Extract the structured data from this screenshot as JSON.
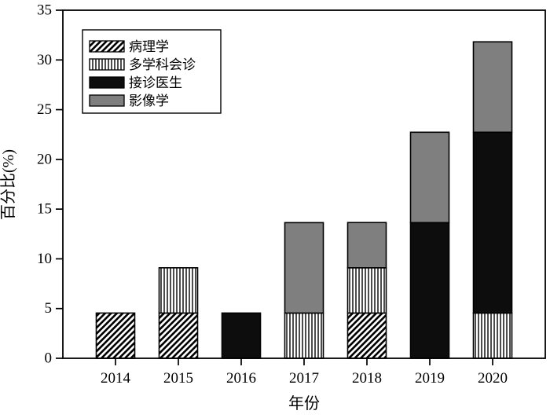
{
  "chart_data": {
    "type": "bar",
    "stacked": true,
    "xlabel": "年份",
    "ylabel": "百分比(%)",
    "ylim": [
      0,
      35
    ],
    "yticks": [
      "0",
      "5",
      "10",
      "15",
      "20",
      "25",
      "30",
      "35"
    ],
    "categories": [
      "2014",
      "2015",
      "2016",
      "2017",
      "2018",
      "2019",
      "2020"
    ],
    "series": [
      {
        "name": "病理学",
        "pattern": "diagonal-hatch",
        "values": [
          4.55,
          4.55,
          0,
          0,
          4.55,
          0,
          0
        ]
      },
      {
        "name": "多学科会诊",
        "pattern": "vertical-lines",
        "values": [
          0,
          4.55,
          0,
          4.55,
          4.55,
          0,
          4.55
        ]
      },
      {
        "name": "接诊医生",
        "pattern": "solid-black",
        "values": [
          0,
          0,
          4.55,
          0,
          0,
          13.64,
          18.18
        ]
      },
      {
        "name": "影像学",
        "pattern": "solid-gray",
        "values": [
          0,
          0,
          0,
          9.09,
          4.55,
          9.09,
          9.09
        ]
      }
    ],
    "totals": [
      4.55,
      9.09,
      4.55,
      13.64,
      13.64,
      22.73,
      31.82
    ],
    "legend_position": "upper-left",
    "grid": false,
    "colors": {
      "black": "#0d0d0d",
      "gray": "#7f7f7f",
      "outline": "#000000",
      "background": "#ffffff"
    }
  }
}
